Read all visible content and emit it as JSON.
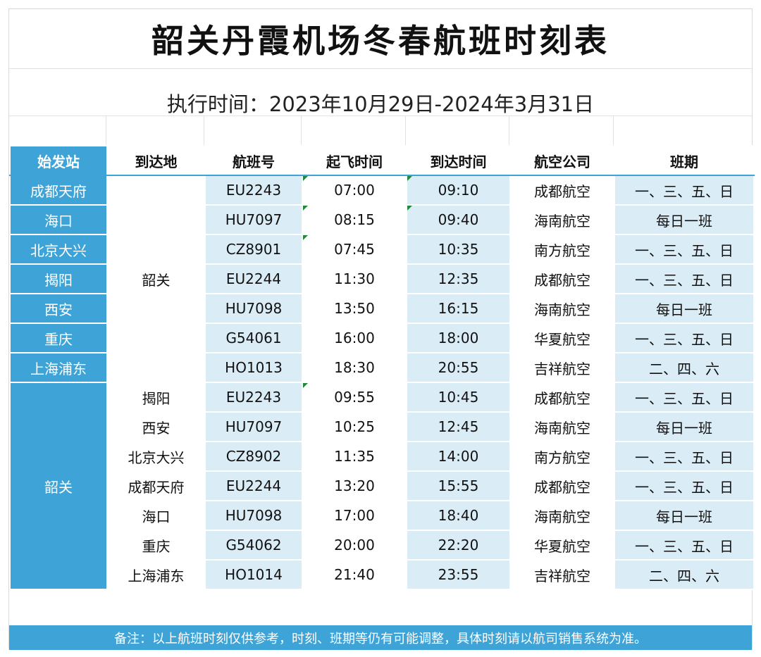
{
  "title": "韶关丹霞机场冬春航班时刻表",
  "period": "执行时间：2023年10月29日-2024年3月31日",
  "headers": {
    "origin": "始发站",
    "destination": "到达地",
    "flight_no": "航班号",
    "departure": "起飞时间",
    "arrival": "到达时间",
    "airline": "航空公司",
    "schedule": "班期"
  },
  "arrivals_section": {
    "destination": "韶关",
    "rows": [
      {
        "origin": "成都天府",
        "flight": "EU2243",
        "dep": "07:00",
        "arr": "09:10",
        "airline": "成都航空",
        "days": "一、三、五、日"
      },
      {
        "origin": "海口",
        "flight": "HU7097",
        "dep": "08:15",
        "arr": "09:40",
        "airline": "海南航空",
        "days": "每日一班"
      },
      {
        "origin": "北京大兴",
        "flight": "CZ8901",
        "dep": "07:45",
        "arr": "10:35",
        "airline": "南方航空",
        "days": "一、三、五、日"
      },
      {
        "origin": "揭阳",
        "flight": "EU2244",
        "dep": "11:30",
        "arr": "12:35",
        "airline": "成都航空",
        "days": "一、三、五、日"
      },
      {
        "origin": "西安",
        "flight": "HU7098",
        "dep": "13:50",
        "arr": "16:15",
        "airline": "海南航空",
        "days": "每日一班"
      },
      {
        "origin": "重庆",
        "flight": "G54061",
        "dep": "16:00",
        "arr": "18:00",
        "airline": "华夏航空",
        "days": "一、三、五、日"
      },
      {
        "origin": "上海浦东",
        "flight": "HO1013",
        "dep": "18:30",
        "arr": "20:55",
        "airline": "吉祥航空",
        "days": "二、四、六"
      }
    ]
  },
  "departures_section": {
    "origin": "韶关",
    "rows": [
      {
        "destination": "揭阳",
        "flight": "EU2243",
        "dep": "09:55",
        "arr": "10:45",
        "airline": "成都航空",
        "days": "一、三、五、日"
      },
      {
        "destination": "西安",
        "flight": "HU7097",
        "dep": "10:25",
        "arr": "12:45",
        "airline": "海南航空",
        "days": "每日一班"
      },
      {
        "destination": "北京大兴",
        "flight": "CZ8902",
        "dep": "11:35",
        "arr": "14:00",
        "airline": "南方航空",
        "days": "一、三、五、日"
      },
      {
        "destination": "成都天府",
        "flight": "EU2244",
        "dep": "13:20",
        "arr": "15:55",
        "airline": "成都航空",
        "days": "一、三、五、日"
      },
      {
        "destination": "海口",
        "flight": "HU7098",
        "dep": "17:00",
        "arr": "18:40",
        "airline": "海南航空",
        "days": "每日一班"
      },
      {
        "destination": "重庆",
        "flight": "G54062",
        "dep": "20:00",
        "arr": "22:20",
        "airline": "华夏航空",
        "days": "一、三、五、日"
      },
      {
        "destination": "上海浦东",
        "flight": "HO1014",
        "dep": "21:40",
        "arr": "23:55",
        "airline": "吉祥航空",
        "days": "二、四、六"
      }
    ]
  },
  "footer_note": "备注：以上航班时刻仅供参考，时刻、班期等仍有可能调整，具体时刻请以航司销售系统为准。",
  "colors": {
    "accent_blue": "#3ea3d6",
    "light_blue": "#daedf7",
    "comment_marker": "#1f8a3a"
  }
}
